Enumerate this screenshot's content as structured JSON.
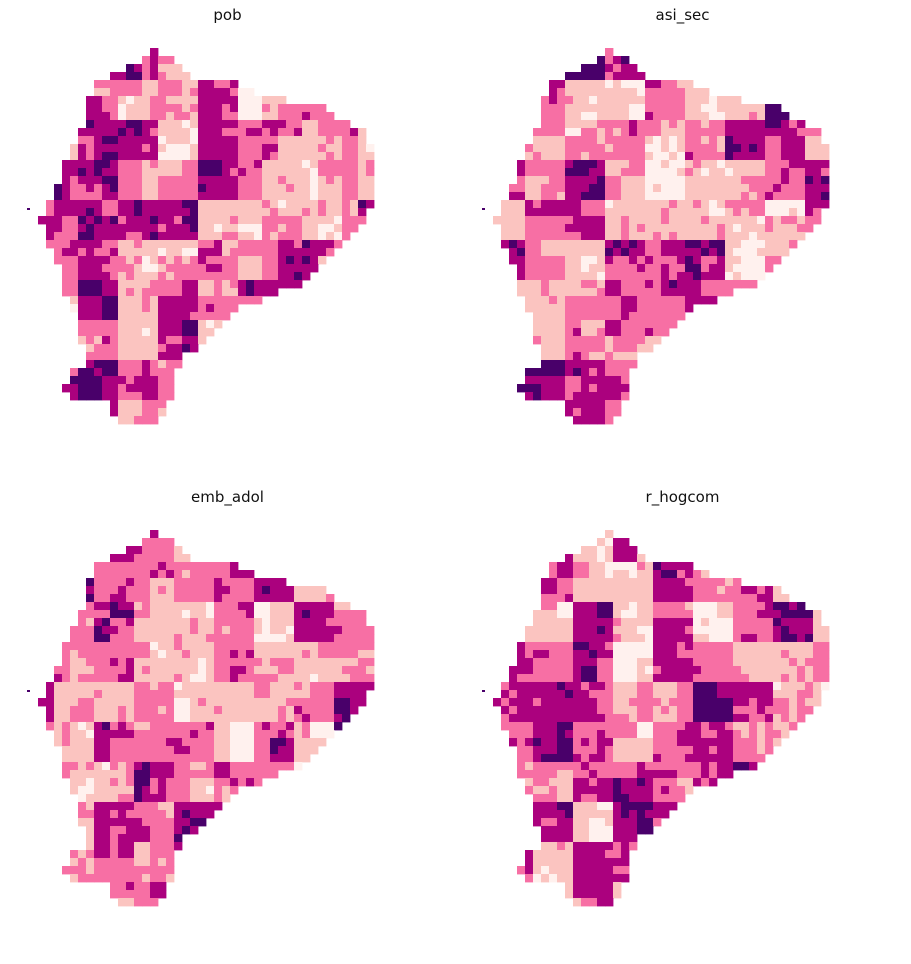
{
  "figure": {
    "panels": [
      {
        "title": "pob",
        "variant": 0
      },
      {
        "title": "asi_sec",
        "variant": 1
      },
      {
        "title": "emb_adol",
        "variant": 2
      },
      {
        "title": "r_hogcom",
        "variant": 3
      }
    ]
  },
  "colors": {
    "class_1": "#fff1ee",
    "class_2": "#fbc4c0",
    "class_3": "#f76fa4",
    "class_4": "#ab017e",
    "class_5": "#49006a"
  }
}
